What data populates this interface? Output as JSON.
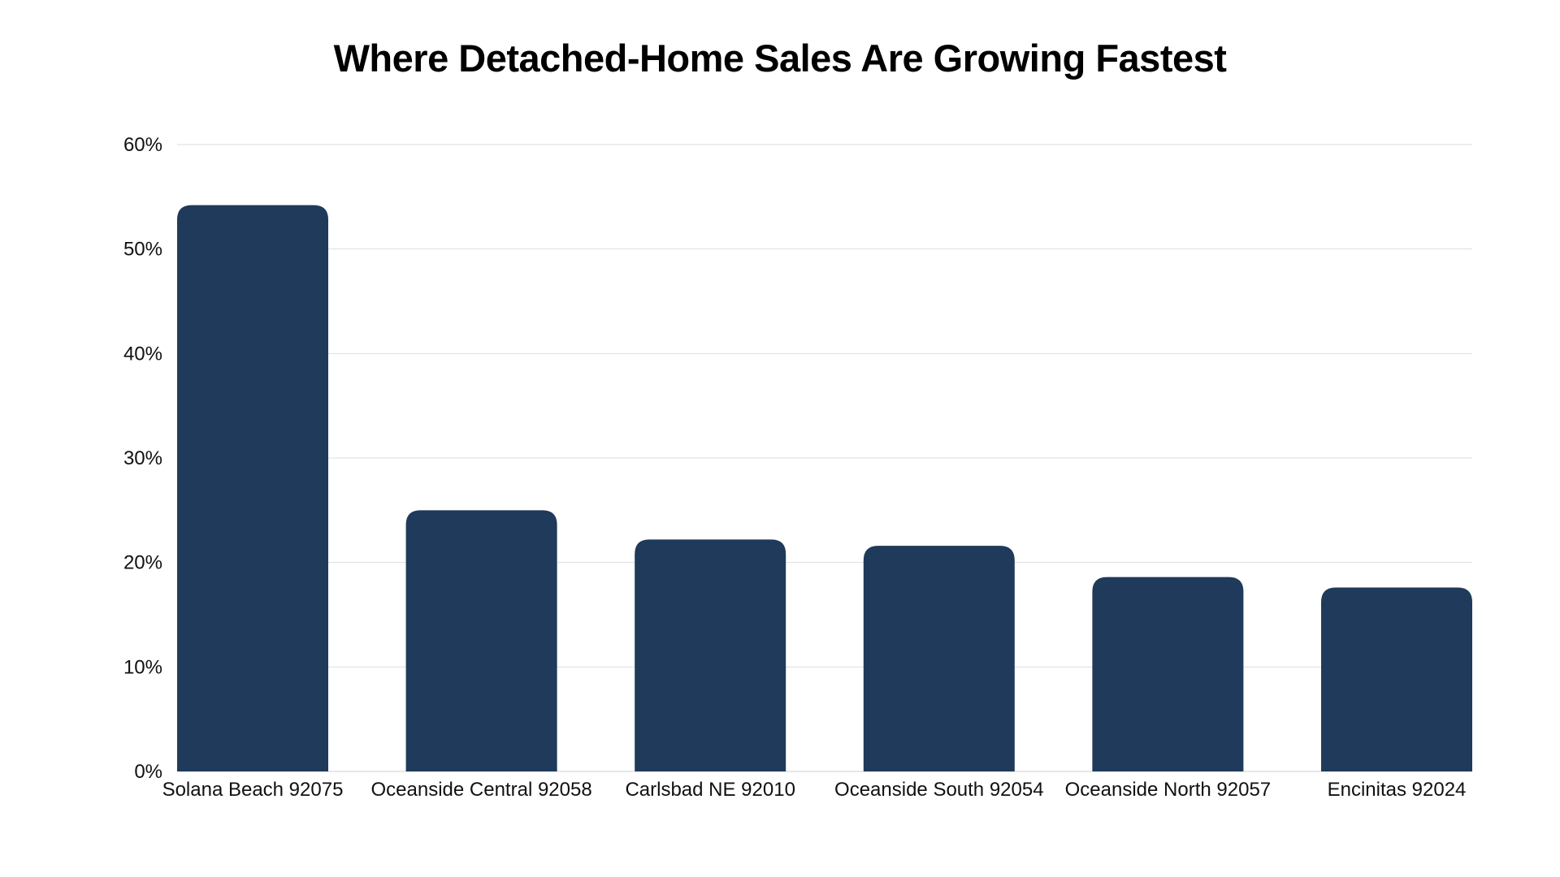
{
  "chart_data": {
    "type": "bar",
    "title": "Where Detached-Home Sales Are Growing Fastest",
    "categories": [
      "Solana Beach 92075",
      "Oceanside Central 92058",
      "Carlsbad NE 92010",
      "Oceanside South 92054",
      "Oceanside North 92057",
      "Encinitas 92024"
    ],
    "values": [
      54.2,
      25.0,
      22.2,
      21.6,
      18.6,
      17.6
    ],
    "ylim": [
      0,
      60
    ],
    "yticks": [
      0,
      10,
      20,
      30,
      40,
      50,
      60
    ],
    "ytick_labels": [
      "0%",
      "10%",
      "20%",
      "30%",
      "40%",
      "50%",
      "60%"
    ],
    "xlabel": "",
    "ylabel": "",
    "grid": true,
    "bar_color": "#1f3a5a",
    "grid_color": "#dddddd"
  }
}
